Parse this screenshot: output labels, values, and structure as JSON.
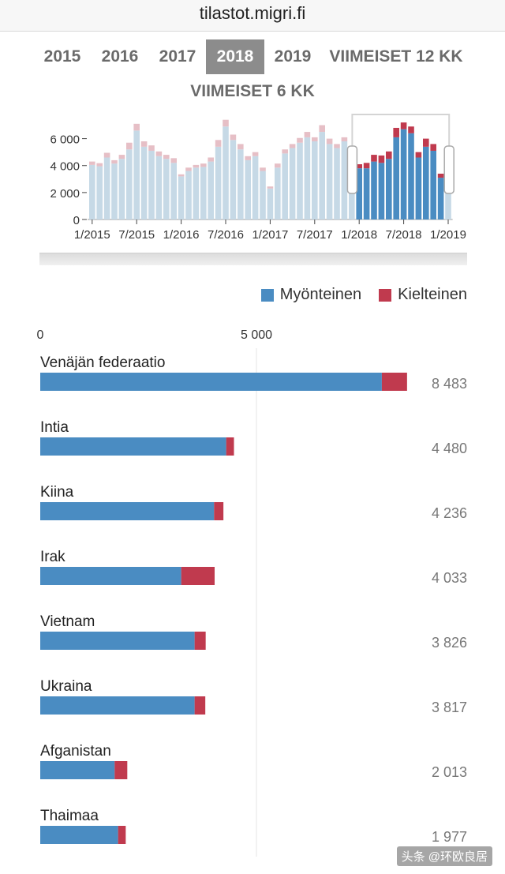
{
  "url": "tilastot.migri.fi",
  "tabs": [
    {
      "label": "2015",
      "active": false
    },
    {
      "label": "2016",
      "active": false
    },
    {
      "label": "2017",
      "active": false
    },
    {
      "label": "2018",
      "active": true
    },
    {
      "label": "2019",
      "active": false
    },
    {
      "label": "VIIMEISET 12 KK",
      "active": false
    },
    {
      "label": "VIIMEISET 6 KK",
      "active": false
    }
  ],
  "colors": {
    "positive": "#4a8cc2",
    "negative": "#c03a4e",
    "positive_faded": "#c6d9e6",
    "negative_faded": "#e6bfc6"
  },
  "legend": {
    "positive": "Myönteinen",
    "negative": "Kielteinen"
  },
  "watermark": "头条 @环欧良居",
  "chart_data": [
    {
      "type": "bar",
      "title": "",
      "stacked": true,
      "categories": [
        "1/2015",
        "2/2015",
        "3/2015",
        "4/2015",
        "5/2015",
        "6/2015",
        "7/2015",
        "8/2015",
        "9/2015",
        "10/2015",
        "11/2015",
        "12/2015",
        "1/2016",
        "2/2016",
        "3/2016",
        "4/2016",
        "5/2016",
        "6/2016",
        "7/2016",
        "8/2016",
        "9/2016",
        "10/2016",
        "11/2016",
        "12/2016",
        "1/2017",
        "2/2017",
        "3/2017",
        "4/2017",
        "5/2017",
        "6/2017",
        "7/2017",
        "8/2017",
        "9/2017",
        "10/2017",
        "11/2017",
        "12/2017",
        "1/2018",
        "2/2018",
        "3/2018",
        "4/2018",
        "5/2018",
        "6/2018",
        "7/2018",
        "8/2018",
        "9/2018",
        "10/2018",
        "11/2018",
        "12/2018",
        "1/2019"
      ],
      "series": [
        {
          "name": "Myönteinen",
          "values": [
            4050,
            3950,
            4600,
            4150,
            4500,
            5200,
            6600,
            5400,
            5100,
            4700,
            4500,
            4200,
            3200,
            3600,
            3850,
            3900,
            4300,
            5400,
            6900,
            5900,
            5200,
            4400,
            4700,
            3600,
            2300,
            3850,
            4900,
            5300,
            5700,
            6100,
            5800,
            6500,
            5600,
            5300,
            5800,
            4600,
            3800,
            3800,
            4300,
            4200,
            4500,
            6100,
            6700,
            6400,
            4600,
            5400,
            5100,
            3100,
            4300
          ]
        },
        {
          "name": "Kielteinen",
          "values": [
            250,
            230,
            350,
            250,
            300,
            500,
            500,
            400,
            400,
            350,
            300,
            350,
            150,
            250,
            200,
            250,
            300,
            500,
            500,
            400,
            400,
            300,
            300,
            250,
            150,
            300,
            300,
            300,
            350,
            400,
            300,
            500,
            400,
            300,
            300,
            300,
            300,
            400,
            500,
            550,
            550,
            700,
            500,
            500,
            400,
            600,
            500,
            300,
            400
          ]
        }
      ],
      "ylim": [
        0,
        7500
      ],
      "yticks": [
        "0",
        "2 000",
        "4 000",
        "6 000"
      ],
      "ytick_values": [
        0,
        2000,
        4000,
        6000
      ],
      "xticks": [
        "1/2015",
        "7/2015",
        "1/2016",
        "7/2016",
        "1/2017",
        "7/2017",
        "1/2018",
        "7/2018",
        "1/2019"
      ],
      "selected_range": [
        "1/2018",
        "12/2018"
      ]
    },
    {
      "type": "bar",
      "orientation": "horizontal",
      "stacked": true,
      "title": "",
      "xlim": [
        0,
        10000
      ],
      "xticks": [
        "0",
        "5 000"
      ],
      "xtick_values": [
        0,
        5000
      ],
      "categories": [
        "Venäjän federaatio",
        "Intia",
        "Kiina",
        "Irak",
        "Vietnam",
        "Ukraina",
        "Afganistan",
        "Thaimaa"
      ],
      "totals": [
        "8 483",
        "4 480",
        "4 236",
        "4 033",
        "3 826",
        "3 817",
        "2 013",
        "1 977"
      ],
      "series": [
        {
          "name": "Myönteinen",
          "values": [
            7900,
            4300,
            4020,
            3260,
            3570,
            3570,
            1720,
            1800
          ]
        },
        {
          "name": "Kielteinen",
          "values": [
            583,
            180,
            216,
            773,
            256,
            247,
            293,
            177
          ]
        }
      ]
    }
  ]
}
